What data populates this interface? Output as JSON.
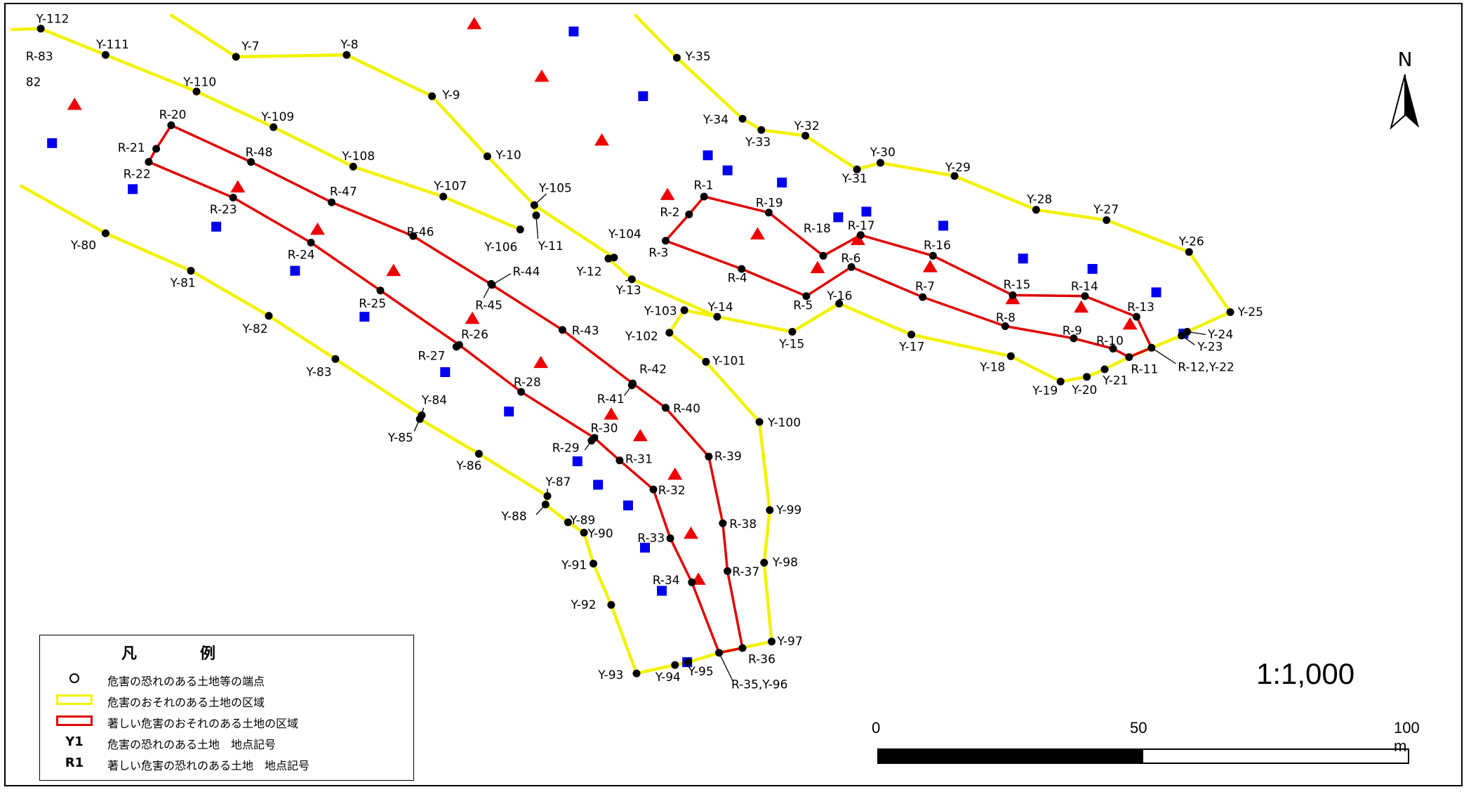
{
  "colors": {
    "yellow": "#f2f200",
    "red": "#e00000",
    "triangle": "#ee0000",
    "square": "#0000ee"
  },
  "map": {
    "north_label": "N",
    "yellow_lines": [
      [
        "Y-110",
        "Y-109",
        "Y-108",
        "Y-107",
        "Y-106"
      ],
      [
        "Y-7",
        "Y-8",
        "Y-9",
        "Y-10",
        "Y-105",
        "Y-11"
      ],
      [
        "Y-111",
        "Y-110"
      ],
      [
        "Y-80",
        "Y-81",
        "Y-82",
        "Y-83",
        "Y-84",
        "Y-85",
        "Y-86",
        "Y-87",
        "Y-88",
        "Y-89",
        "Y-90",
        "Y-91",
        "Y-92",
        "Y-93",
        "Y-94",
        "Y-95",
        "R-35,Y-96",
        "Y-97",
        "Y-98",
        "Y-99",
        "Y-100",
        "Y-101",
        "Y-102",
        "Y-103",
        "Y-14",
        "Y-15",
        "Y-16",
        "Y-17",
        "Y-18",
        "Y-19",
        "Y-20",
        "Y-21",
        "R-11",
        "R-12,Y-22",
        "Y-23",
        "Y-24",
        "Y-25",
        "Y-26",
        "Y-27",
        "Y-28",
        "Y-29",
        "Y-30",
        "Y-31",
        "Y-32",
        "Y-33",
        "Y-34",
        "Y-35"
      ],
      [
        "Y-105",
        "Y-104",
        "Y-12",
        "Y-13",
        "Y-14"
      ]
    ],
    "red_lines": [
      [
        "R-20",
        "R-48",
        "R-47",
        "R-46",
        "R-44",
        "R-43",
        "R-42",
        "R-40",
        "R-39",
        "R-38",
        "R-37",
        "R-36",
        "R-35,Y-96",
        "R-34",
        "R-33",
        "R-32",
        "R-31",
        "R-30",
        "R-28",
        "R-27",
        "R-25",
        "R-24",
        "R-23",
        "R-22",
        "R-21",
        "R-20"
      ],
      [
        "R-1",
        "R-19",
        "R-18",
        "R-17",
        "R-16",
        "R-15",
        "R-14",
        "R-13",
        "R-12,Y-22",
        "R-11",
        "R-10",
        "R-9",
        "R-8",
        "R-7",
        "R-6",
        "R-5",
        "R-4",
        "R-3",
        "R-2",
        "R-1"
      ]
    ],
    "points": [
      {
        "id": "Y-7",
        "label": "Y-7"
      },
      {
        "id": "Y-8",
        "label": "Y-8"
      },
      {
        "id": "Y-9",
        "label": "Y-9"
      },
      {
        "id": "Y-10",
        "label": "Y-10"
      },
      {
        "id": "Y-11",
        "label": "Y-11"
      },
      {
        "id": "Y-12",
        "label": "Y-12"
      },
      {
        "id": "Y-13",
        "label": "Y-13"
      },
      {
        "id": "Y-14",
        "label": "Y-14"
      },
      {
        "id": "Y-15",
        "label": "Y-15"
      },
      {
        "id": "Y-16",
        "label": "Y-16"
      },
      {
        "id": "Y-17",
        "label": "Y-17"
      },
      {
        "id": "Y-18",
        "label": "Y-18"
      },
      {
        "id": "Y-19",
        "label": "Y-19"
      },
      {
        "id": "Y-20",
        "label": "Y-20"
      },
      {
        "id": "Y-21",
        "label": "Y-21"
      },
      {
        "id": "R-12,Y-22",
        "label": "R-12,Y-22"
      },
      {
        "id": "Y-23",
        "label": "Y-23"
      },
      {
        "id": "Y-24",
        "label": "Y-24"
      },
      {
        "id": "Y-25",
        "label": "Y-25"
      },
      {
        "id": "Y-26",
        "label": "Y-26"
      },
      {
        "id": "Y-27",
        "label": "Y-27"
      },
      {
        "id": "Y-28",
        "label": "Y-28"
      },
      {
        "id": "Y-29",
        "label": "Y-29"
      },
      {
        "id": "Y-30",
        "label": "Y-30"
      },
      {
        "id": "Y-31",
        "label": "Y-31"
      },
      {
        "id": "Y-32",
        "label": "Y-32"
      },
      {
        "id": "Y-33",
        "label": "Y-33"
      },
      {
        "id": "Y-34",
        "label": "Y-34"
      },
      {
        "id": "Y-35",
        "label": "Y-35"
      },
      {
        "id": "Y-80",
        "label": "Y-80"
      },
      {
        "id": "Y-81",
        "label": "Y-81"
      },
      {
        "id": "Y-82",
        "label": "Y-82"
      },
      {
        "id": "Y-83",
        "label": "Y-83"
      },
      {
        "id": "Y-84",
        "label": "Y-84"
      },
      {
        "id": "Y-85",
        "label": "Y-85"
      },
      {
        "id": "Y-86",
        "label": "Y-86"
      },
      {
        "id": "Y-87",
        "label": "Y-87"
      },
      {
        "id": "Y-88",
        "label": "Y-88"
      },
      {
        "id": "Y-89",
        "label": "Y-89"
      },
      {
        "id": "Y-90",
        "label": "Y-90"
      },
      {
        "id": "Y-91",
        "label": "Y-91"
      },
      {
        "id": "Y-92",
        "label": "Y-92"
      },
      {
        "id": "Y-93",
        "label": "Y-93"
      },
      {
        "id": "Y-94",
        "label": "Y-94"
      },
      {
        "id": "Y-95",
        "label": "Y-95"
      },
      {
        "id": "R-35,Y-96",
        "label": "R-35,Y-96"
      },
      {
        "id": "Y-97",
        "label": "Y-97"
      },
      {
        "id": "Y-98",
        "label": "Y-98"
      },
      {
        "id": "Y-99",
        "label": "Y-99"
      },
      {
        "id": "Y-100",
        "label": "Y-100"
      },
      {
        "id": "Y-101",
        "label": "Y-101"
      },
      {
        "id": "Y-102",
        "label": "Y-102"
      },
      {
        "id": "Y-103",
        "label": "Y-103"
      },
      {
        "id": "Y-104",
        "label": "Y-104"
      },
      {
        "id": "Y-105",
        "label": "Y-105"
      },
      {
        "id": "Y-106",
        "label": "Y-106"
      },
      {
        "id": "Y-107",
        "label": "Y-107"
      },
      {
        "id": "Y-108",
        "label": "Y-108"
      },
      {
        "id": "Y-109",
        "label": "Y-109"
      },
      {
        "id": "Y-110",
        "label": "Y-110"
      },
      {
        "id": "Y-111",
        "label": "Y-111"
      },
      {
        "id": "Y-112",
        "label": "Y-112"
      },
      {
        "id": "R-1",
        "label": "R-1"
      },
      {
        "id": "R-2",
        "label": "R-2"
      },
      {
        "id": "R-3",
        "label": "R-3"
      },
      {
        "id": "R-4",
        "label": "R-4"
      },
      {
        "id": "R-5",
        "label": "R-5"
      },
      {
        "id": "R-6",
        "label": "R-6"
      },
      {
        "id": "R-7",
        "label": "R-7"
      },
      {
        "id": "R-8",
        "label": "R-8"
      },
      {
        "id": "R-9",
        "label": "R-9"
      },
      {
        "id": "R-10",
        "label": "R-10"
      },
      {
        "id": "R-11",
        "label": "R-11"
      },
      {
        "id": "R-13",
        "label": "R-13"
      },
      {
        "id": "R-14",
        "label": "R-14"
      },
      {
        "id": "R-15",
        "label": "R-15"
      },
      {
        "id": "R-16",
        "label": "R-16"
      },
      {
        "id": "R-17",
        "label": "R-17"
      },
      {
        "id": "R-18",
        "label": "R-18"
      },
      {
        "id": "R-19",
        "label": "R-19"
      },
      {
        "id": "R-20",
        "label": "R-20"
      },
      {
        "id": "R-21",
        "label": "R-21"
      },
      {
        "id": "R-22",
        "label": "R-22"
      },
      {
        "id": "R-23",
        "label": "R-23"
      },
      {
        "id": "R-24",
        "label": "R-24"
      },
      {
        "id": "R-25",
        "label": "R-25"
      },
      {
        "id": "R-26",
        "label": "R-26"
      },
      {
        "id": "R-27",
        "label": "R-27"
      },
      {
        "id": "R-28",
        "label": "R-28"
      },
      {
        "id": "R-29",
        "label": "R-29"
      },
      {
        "id": "R-30",
        "label": "R-30"
      },
      {
        "id": "R-31",
        "label": "R-31"
      },
      {
        "id": "R-32",
        "label": "R-32"
      },
      {
        "id": "R-33",
        "label": "R-33"
      },
      {
        "id": "R-34",
        "label": "R-34"
      },
      {
        "id": "R-36",
        "label": "R-36"
      },
      {
        "id": "R-37",
        "label": "R-37"
      },
      {
        "id": "R-38",
        "label": "R-38"
      },
      {
        "id": "R-39",
        "label": "R-39"
      },
      {
        "id": "R-40",
        "label": "R-40"
      },
      {
        "id": "R-41",
        "label": "R-41"
      },
      {
        "id": "R-42",
        "label": "R-42"
      },
      {
        "id": "R-43",
        "label": "R-43"
      },
      {
        "id": "R-44",
        "label": "R-44"
      },
      {
        "id": "R-45",
        "label": "R-45"
      },
      {
        "id": "R-46",
        "label": "R-46"
      },
      {
        "id": "R-47",
        "label": "R-47"
      },
      {
        "id": "R-48",
        "label": "R-48"
      },
      {
        "id": "R-83",
        "label": "R-83"
      },
      {
        "id": "82",
        "label": "82"
      }
    ]
  },
  "legend": {
    "title": "凡　例",
    "items": [
      {
        "symbol": "",
        "text": "危害の恐れのある土地等の端点"
      },
      {
        "symbol": "",
        "text": "危害のおそれのある土地の区域"
      },
      {
        "symbol": "",
        "text": "著しい危害のおそれのある土地の区域"
      },
      {
        "symbol": "Y1",
        "text": "危害の恐れのある土地　地点記号"
      },
      {
        "symbol": "R1",
        "text": "著しい危害の恐れのある土地　地点記号"
      }
    ]
  },
  "scale": {
    "ratio": "1:1,000",
    "labels": [
      "0",
      "50",
      "100 m"
    ]
  }
}
